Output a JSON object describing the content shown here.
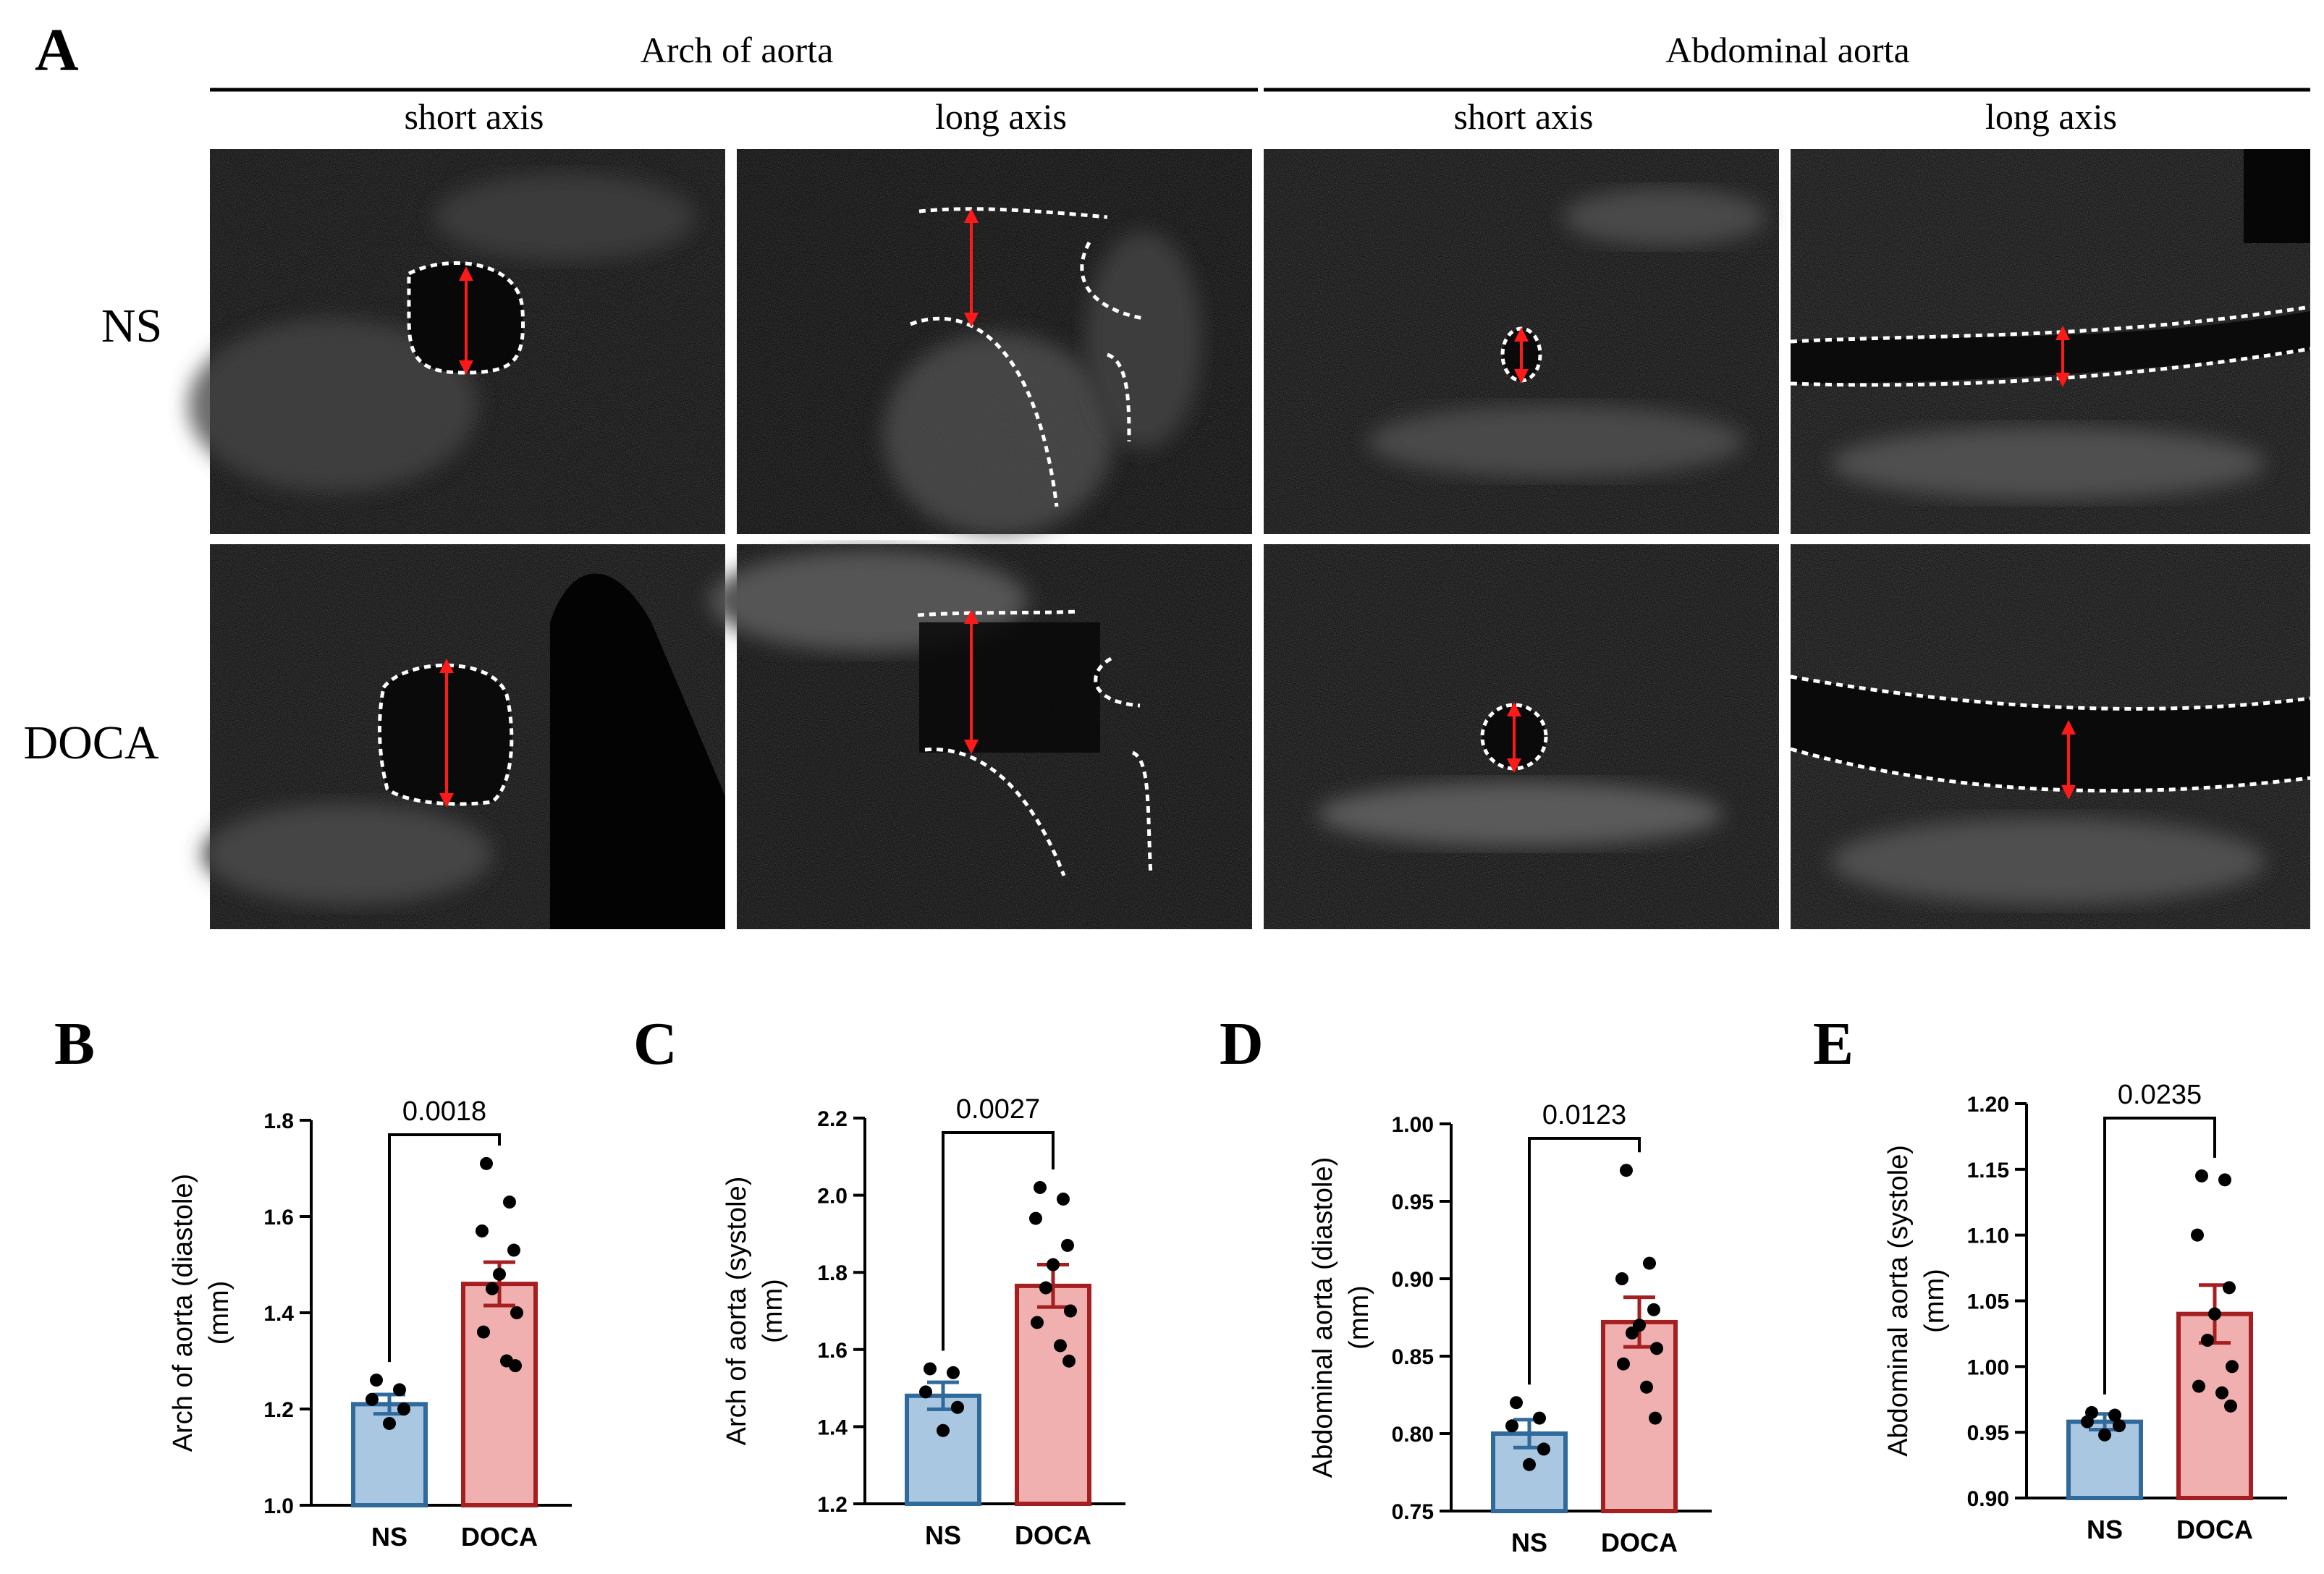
{
  "panel_a": {
    "letter": "A",
    "group_headers": [
      "Arch of aorta",
      "Abdominal aorta"
    ],
    "view_headers": [
      "short axis",
      "long axis",
      "short axis",
      "long axis"
    ],
    "row_labels": [
      "NS",
      "DOCA"
    ]
  },
  "chart_data": [
    {
      "panel": "B",
      "type": "bar",
      "categories": [
        "NS",
        "DOCA"
      ],
      "values": [
        1.21,
        1.46
      ],
      "sem": [
        0.02,
        0.045
      ],
      "points": [
        [
          1.26,
          1.24,
          1.22,
          1.2,
          1.17
        ],
        [
          1.71,
          1.63,
          1.57,
          1.53,
          1.48,
          1.45,
          1.4,
          1.36,
          1.3,
          1.29
        ]
      ],
      "ylabel": "Arch of aorta (diastole)\n(mm)",
      "ylim": [
        1.0,
        1.8
      ],
      "yticks": [
        "1.0",
        "1.2",
        "1.4",
        "1.6",
        "1.8"
      ],
      "p_value": "0.0018",
      "colors": {
        "fill": [
          "#a9c7e1",
          "#f0b0b0"
        ],
        "stroke": [
          "#2f6a9b",
          "#a51f20"
        ]
      }
    },
    {
      "panel": "C",
      "type": "bar",
      "categories": [
        "NS",
        "DOCA"
      ],
      "values": [
        1.48,
        1.765
      ],
      "sem": [
        0.035,
        0.055
      ],
      "points": [
        [
          1.55,
          1.54,
          1.49,
          1.45,
          1.39
        ],
        [
          2.02,
          1.99,
          1.94,
          1.87,
          1.82,
          1.76,
          1.7,
          1.67,
          1.61,
          1.57
        ]
      ],
      "ylabel": "Arch of aorta (systole)\n(mm)",
      "ylim": [
        1.2,
        2.2
      ],
      "yticks": [
        "1.2",
        "1.4",
        "1.6",
        "1.8",
        "2.0",
        "2.2"
      ],
      "p_value": "0.0027",
      "colors": {
        "fill": [
          "#a9c7e1",
          "#f0b0b0"
        ],
        "stroke": [
          "#2f6a9b",
          "#a51f20"
        ]
      }
    },
    {
      "panel": "D",
      "type": "bar",
      "categories": [
        "NS",
        "DOCA"
      ],
      "values": [
        0.8,
        0.872
      ],
      "sem": [
        0.009,
        0.016
      ],
      "points": [
        [
          0.82,
          0.81,
          0.805,
          0.79,
          0.78
        ],
        [
          0.97,
          0.91,
          0.9,
          0.88,
          0.87,
          0.865,
          0.855,
          0.845,
          0.83,
          0.81
        ]
      ],
      "ylabel": "Abdominal aorta (diastole)\n(mm)",
      "ylim": [
        0.75,
        1.0
      ],
      "yticks": [
        "0.75",
        "0.80",
        "0.85",
        "0.90",
        "0.95",
        "1.00"
      ],
      "p_value": "0.0123",
      "colors": {
        "fill": [
          "#a9c7e1",
          "#f0b0b0"
        ],
        "stroke": [
          "#2f6a9b",
          "#a51f20"
        ]
      }
    },
    {
      "panel": "E",
      "type": "bar",
      "categories": [
        "NS",
        "DOCA"
      ],
      "values": [
        0.958,
        1.04
      ],
      "sem": [
        0.006,
        0.022
      ],
      "points": [
        [
          0.965,
          0.963,
          0.958,
          0.955,
          0.948
        ],
        [
          1.145,
          1.142,
          1.1,
          1.06,
          1.04,
          1.02,
          1.0,
          0.985,
          0.98,
          0.97
        ]
      ],
      "ylabel": "Abdominal aorta (systole)\n(mm)",
      "ylim": [
        0.9,
        1.2
      ],
      "yticks": [
        "0.90",
        "0.95",
        "1.00",
        "1.05",
        "1.10",
        "1.15",
        "1.20"
      ],
      "p_value": "0.0235",
      "colors": {
        "fill": [
          "#a9c7e1",
          "#f0b0b0"
        ],
        "stroke": [
          "#2f6a9b",
          "#a51f20"
        ]
      }
    }
  ]
}
